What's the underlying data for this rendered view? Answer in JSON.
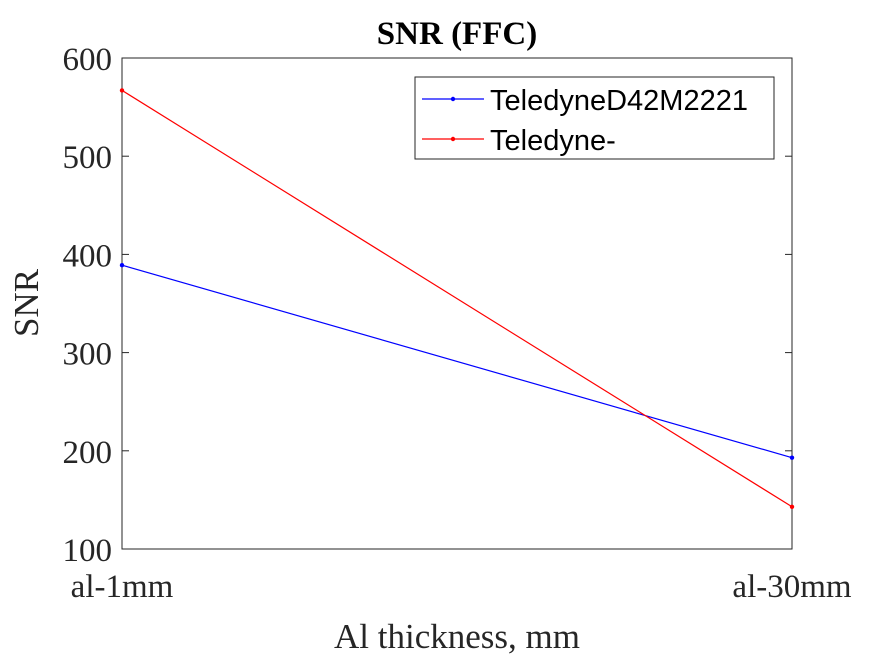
{
  "chart_data": {
    "type": "line",
    "title": "SNR (FFC)",
    "xlabel": "Al thickness, mm",
    "ylabel": "SNR",
    "categories": [
      "al-1mm",
      "al-30mm"
    ],
    "ylim": [
      100,
      600
    ],
    "yticks": [
      100,
      200,
      300,
      400,
      500,
      600
    ],
    "grid": false,
    "legend_position": "top-right",
    "series": [
      {
        "name": "TeledyneD42M2221",
        "values": [
          389,
          193
        ],
        "color": "#0000ff"
      },
      {
        "name": "Teledyne-",
        "values": [
          567,
          143
        ],
        "color": "#ff0000"
      }
    ]
  }
}
